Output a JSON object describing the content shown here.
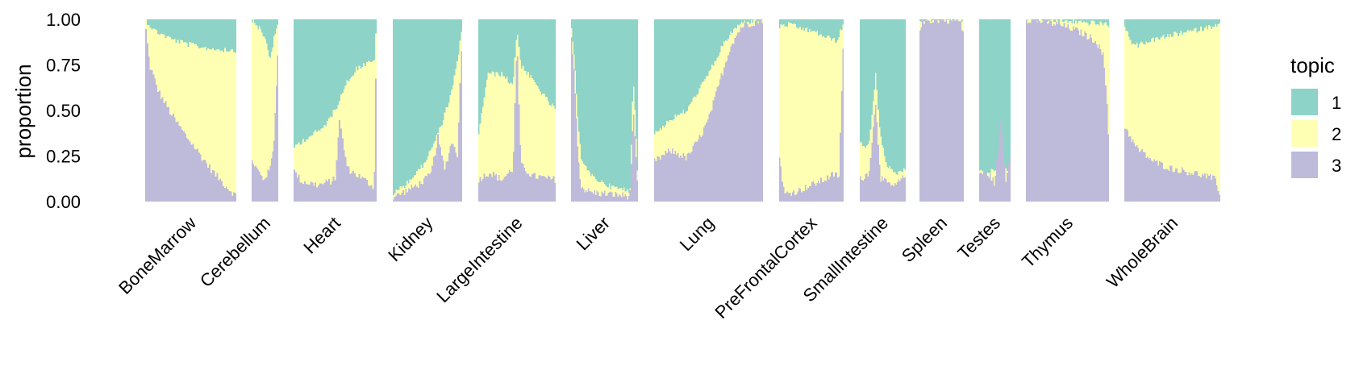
{
  "chart_data": {
    "type": "area",
    "stacked": true,
    "ylabel": "proportion",
    "ylim": [
      0,
      1
    ],
    "yticks": [
      "0.00",
      "0.25",
      "0.50",
      "0.75",
      "1.00"
    ],
    "legend": {
      "title": "topic",
      "position": "right"
    },
    "series": [
      {
        "name": "1",
        "color": "#8dd3c7"
      },
      {
        "name": "2",
        "color": "#ffffb3"
      },
      {
        "name": "3",
        "color": "#bebada"
      }
    ],
    "facets": [
      {
        "name": "BoneMarrow",
        "n": 60,
        "t3": [
          [
            0,
            0.98
          ],
          [
            0.05,
            0.75
          ],
          [
            0.15,
            0.6
          ],
          [
            0.3,
            0.47
          ],
          [
            0.45,
            0.36
          ],
          [
            0.6,
            0.26
          ],
          [
            0.75,
            0.16
          ],
          [
            0.88,
            0.09
          ],
          [
            1,
            0.03
          ]
        ],
        "t1": [
          [
            0,
            0
          ],
          [
            0.1,
            0.06
          ],
          [
            0.3,
            0.11
          ],
          [
            0.5,
            0.14
          ],
          [
            0.7,
            0.16
          ],
          [
            1,
            0.17
          ]
        ]
      },
      {
        "name": "Cerebellum",
        "n": 22,
        "t3": [
          [
            0,
            0.23
          ],
          [
            0.2,
            0.18
          ],
          [
            0.45,
            0.12
          ],
          [
            0.7,
            0.18
          ],
          [
            0.85,
            0.35
          ],
          [
            1,
            0.9
          ]
        ],
        "t1": [
          [
            0,
            0
          ],
          [
            0.3,
            0.05
          ],
          [
            0.55,
            0.12
          ],
          [
            0.7,
            0.22
          ],
          [
            0.85,
            0.1
          ],
          [
            1,
            0.03
          ]
        ]
      },
      {
        "name": "Heart",
        "n": 55,
        "t3": [
          [
            0,
            0.17
          ],
          [
            0.1,
            0.11
          ],
          [
            0.3,
            0.09
          ],
          [
            0.5,
            0.12
          ],
          [
            0.55,
            0.45
          ],
          [
            0.65,
            0.18
          ],
          [
            0.85,
            0.12
          ],
          [
            0.97,
            0.08
          ],
          [
            1,
            0.95
          ]
        ],
        "t1": [
          [
            0,
            0.7
          ],
          [
            0.2,
            0.64
          ],
          [
            0.35,
            0.6
          ],
          [
            0.5,
            0.5
          ],
          [
            0.6,
            0.38
          ],
          [
            0.75,
            0.27
          ],
          [
            0.9,
            0.24
          ],
          [
            0.97,
            0.23
          ],
          [
            1,
            0.03
          ]
        ]
      },
      {
        "name": "Kidney",
        "n": 50,
        "t3": [
          [
            0,
            0.02
          ],
          [
            0.2,
            0.06
          ],
          [
            0.4,
            0.1
          ],
          [
            0.55,
            0.15
          ],
          [
            0.65,
            0.35
          ],
          [
            0.75,
            0.18
          ],
          [
            0.85,
            0.33
          ],
          [
            0.93,
            0.26
          ],
          [
            1,
            0.92
          ]
        ],
        "t1": [
          [
            0,
            0.96
          ],
          [
            0.2,
            0.9
          ],
          [
            0.4,
            0.82
          ],
          [
            0.55,
            0.72
          ],
          [
            0.7,
            0.58
          ],
          [
            0.85,
            0.4
          ],
          [
            0.95,
            0.2
          ],
          [
            1,
            0.02
          ]
        ]
      },
      {
        "name": "LargeIntestine",
        "n": 58,
        "t3": [
          [
            0,
            0.12
          ],
          [
            0.15,
            0.16
          ],
          [
            0.3,
            0.12
          ],
          [
            0.45,
            0.18
          ],
          [
            0.5,
            0.9
          ],
          [
            0.55,
            0.2
          ],
          [
            0.7,
            0.14
          ],
          [
            0.85,
            0.13
          ],
          [
            1,
            0.12
          ]
        ],
        "t1": [
          [
            0,
            0.65
          ],
          [
            0.12,
            0.3
          ],
          [
            0.3,
            0.3
          ],
          [
            0.45,
            0.36
          ],
          [
            0.5,
            0.05
          ],
          [
            0.55,
            0.25
          ],
          [
            0.7,
            0.33
          ],
          [
            0.85,
            0.42
          ],
          [
            1,
            0.5
          ]
        ]
      },
      {
        "name": "Liver",
        "n": 55,
        "t3": [
          [
            0,
            0.95
          ],
          [
            0.05,
            0.7
          ],
          [
            0.1,
            0.3
          ],
          [
            0.15,
            0.08
          ],
          [
            0.3,
            0.05
          ],
          [
            0.6,
            0.04
          ],
          [
            0.88,
            0.03
          ],
          [
            0.93,
            0.5
          ],
          [
            1,
            0.05
          ]
        ],
        "t1": [
          [
            0,
            0.03
          ],
          [
            0.05,
            0.2
          ],
          [
            0.1,
            0.55
          ],
          [
            0.15,
            0.75
          ],
          [
            0.3,
            0.86
          ],
          [
            0.6,
            0.92
          ],
          [
            0.88,
            0.94
          ],
          [
            0.93,
            0.3
          ],
          [
            1,
            0.9
          ]
        ]
      },
      {
        "name": "Lung",
        "n": 80,
        "t3": [
          [
            0,
            0.22
          ],
          [
            0.15,
            0.28
          ],
          [
            0.3,
            0.24
          ],
          [
            0.42,
            0.35
          ],
          [
            0.5,
            0.45
          ],
          [
            0.6,
            0.65
          ],
          [
            0.7,
            0.85
          ],
          [
            0.8,
            0.96
          ],
          [
            1,
            1
          ]
        ],
        "t1": [
          [
            0,
            0.63
          ],
          [
            0.15,
            0.55
          ],
          [
            0.3,
            0.5
          ],
          [
            0.42,
            0.38
          ],
          [
            0.5,
            0.3
          ],
          [
            0.6,
            0.18
          ],
          [
            0.7,
            0.08
          ],
          [
            0.8,
            0.02
          ],
          [
            1,
            0
          ]
        ]
      },
      {
        "name": "PreFrontalCortex",
        "n": 50,
        "t3": [
          [
            0,
            0.27
          ],
          [
            0.08,
            0.04
          ],
          [
            0.3,
            0.06
          ],
          [
            0.5,
            0.09
          ],
          [
            0.7,
            0.12
          ],
          [
            0.85,
            0.15
          ],
          [
            0.93,
            0.14
          ],
          [
            1,
            0.95
          ]
        ],
        "t1": [
          [
            0,
            0.04
          ],
          [
            0.15,
            0.03
          ],
          [
            0.35,
            0.05
          ],
          [
            0.55,
            0.07
          ],
          [
            0.75,
            0.1
          ],
          [
            0.9,
            0.12
          ],
          [
            1,
            0.02
          ]
        ]
      },
      {
        "name": "SmallIntestine",
        "n": 36,
        "t3": [
          [
            0,
            0.12
          ],
          [
            0.2,
            0.16
          ],
          [
            0.35,
            0.55
          ],
          [
            0.45,
            0.13
          ],
          [
            0.6,
            0.1
          ],
          [
            0.75,
            0.08
          ],
          [
            0.9,
            0.12
          ],
          [
            1,
            0.14
          ]
        ],
        "t1": [
          [
            0,
            0.68
          ],
          [
            0.2,
            0.7
          ],
          [
            0.35,
            0.3
          ],
          [
            0.45,
            0.65
          ],
          [
            0.6,
            0.8
          ],
          [
            0.75,
            0.85
          ],
          [
            1,
            0.82
          ]
        ]
      },
      {
        "name": "Spleen",
        "n": 34,
        "t3": [
          [
            0,
            0.95
          ],
          [
            0.1,
            0.99
          ],
          [
            0.5,
            1
          ],
          [
            0.9,
            0.99
          ],
          [
            1,
            0.92
          ]
        ],
        "t1": [
          [
            0,
            0
          ],
          [
            0.5,
            0
          ],
          [
            1,
            0
          ]
        ]
      },
      {
        "name": "Testes",
        "n": 24,
        "t3": [
          [
            0,
            0.16
          ],
          [
            0.3,
            0.15
          ],
          [
            0.5,
            0.1
          ],
          [
            0.7,
            0.45
          ],
          [
            0.85,
            0.12
          ],
          [
            1,
            0.28
          ]
        ],
        "t1": [
          [
            0,
            0.82
          ],
          [
            0.3,
            0.85
          ],
          [
            0.5,
            0.82
          ],
          [
            0.7,
            0.8
          ],
          [
            0.85,
            0.83
          ],
          [
            1,
            0.8
          ]
        ]
      },
      {
        "name": "Thymus",
        "n": 64,
        "t3": [
          [
            0,
            1
          ],
          [
            0.2,
            0.99
          ],
          [
            0.4,
            0.97
          ],
          [
            0.55,
            0.95
          ],
          [
            0.7,
            0.92
          ],
          [
            0.85,
            0.88
          ],
          [
            0.93,
            0.8
          ],
          [
            0.97,
            0.6
          ],
          [
            1,
            0.3
          ]
        ],
        "t1": [
          [
            0,
            0
          ],
          [
            0.5,
            0.01
          ],
          [
            0.8,
            0.02
          ],
          [
            1,
            0.03
          ]
        ]
      },
      {
        "name": "WholeBrain",
        "n": 72,
        "t3": [
          [
            0,
            0.42
          ],
          [
            0.12,
            0.3
          ],
          [
            0.3,
            0.22
          ],
          [
            0.5,
            0.18
          ],
          [
            0.7,
            0.16
          ],
          [
            0.85,
            0.14
          ],
          [
            0.95,
            0.12
          ],
          [
            1,
            0.04
          ]
        ],
        "t1": [
          [
            0,
            0.04
          ],
          [
            0.1,
            0.15
          ],
          [
            0.25,
            0.12
          ],
          [
            0.4,
            0.1
          ],
          [
            0.55,
            0.08
          ],
          [
            0.75,
            0.06
          ],
          [
            0.9,
            0.04
          ],
          [
            1,
            0.02
          ]
        ]
      }
    ]
  }
}
